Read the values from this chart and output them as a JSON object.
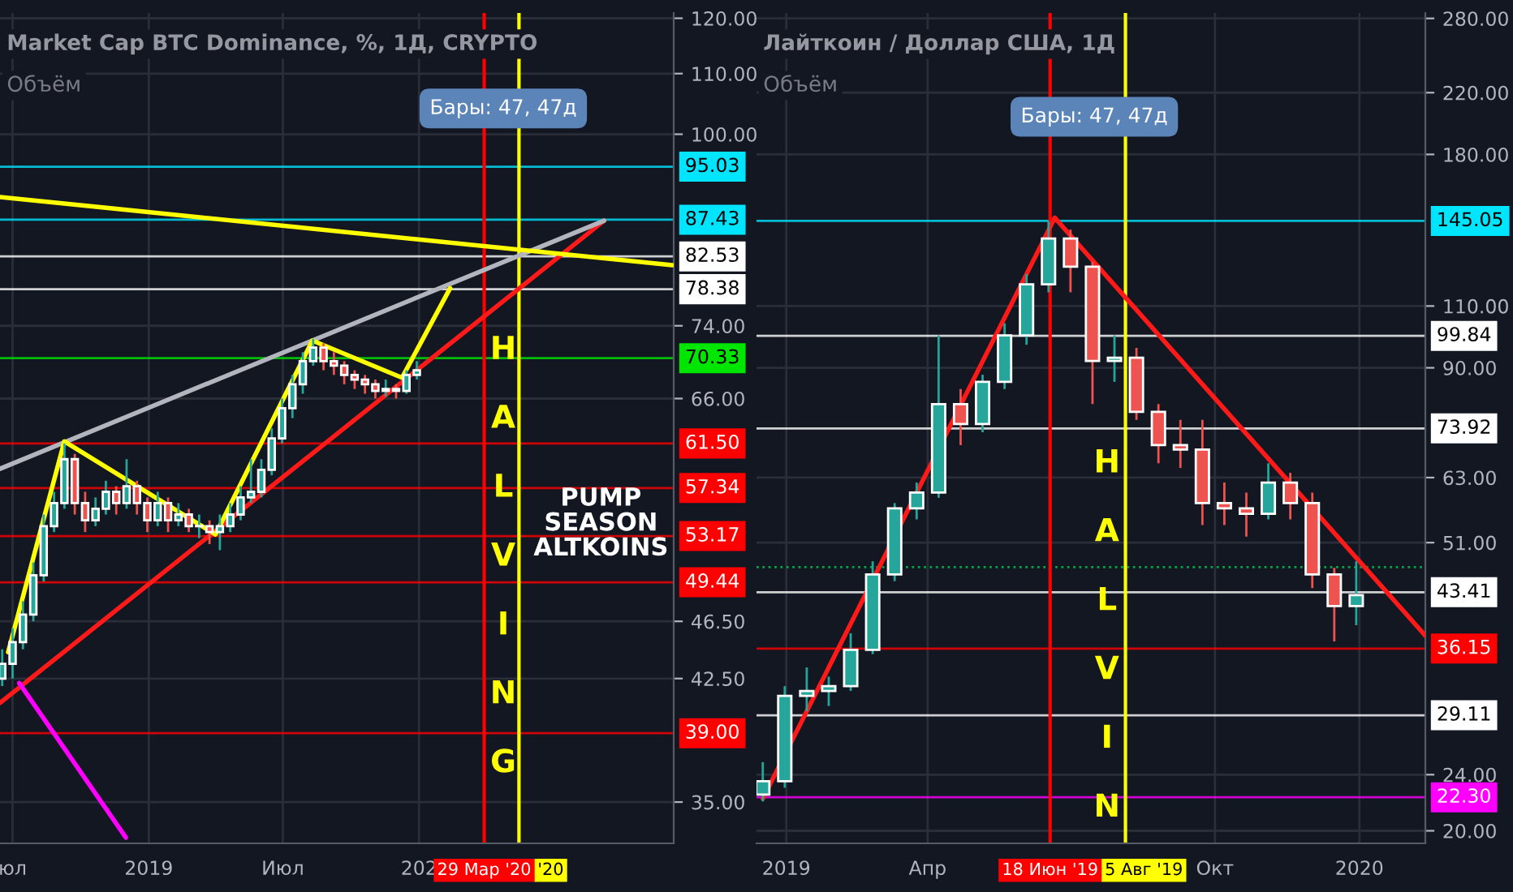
{
  "chart_data": [
    {
      "type": "candlestick",
      "title": "Market Cap BTC Dominance, %, 1Д, CRYPTO",
      "subtitle": "Объём",
      "x": [
        "2018-06-17",
        "2018-07-01",
        "2018-07-15",
        "2018-07-29",
        "2018-08-12",
        "2018-08-26",
        "2018-09-09",
        "2018-09-23",
        "2018-10-07",
        "2018-10-21",
        "2018-11-04",
        "2018-11-18",
        "2018-12-02",
        "2018-12-16",
        "2018-12-30",
        "2019-01-13",
        "2019-01-27",
        "2019-02-10",
        "2019-02-24",
        "2019-03-10",
        "2019-03-24",
        "2019-04-07",
        "2019-04-21",
        "2019-05-05",
        "2019-05-19",
        "2019-06-02",
        "2019-06-16",
        "2019-06-30",
        "2019-07-14",
        "2019-07-28",
        "2019-08-11",
        "2019-08-25",
        "2019-09-08",
        "2019-09-22",
        "2019-10-06",
        "2019-10-20",
        "2019-11-03",
        "2019-11-17",
        "2019-12-01",
        "2019-12-15",
        "2019-12-29"
      ],
      "ohlc": [
        [
          42.5,
          44.5,
          42,
          43.5
        ],
        [
          43.5,
          46,
          42.5,
          45
        ],
        [
          45,
          48,
          44.5,
          47
        ],
        [
          47,
          51,
          46.5,
          50
        ],
        [
          50,
          55,
          49.5,
          54
        ],
        [
          54,
          57,
          53.5,
          56
        ],
        [
          56,
          61.5,
          55.5,
          60
        ],
        [
          60,
          60.5,
          55,
          56
        ],
        [
          56,
          57,
          53.5,
          54.5
        ],
        [
          54.5,
          56.5,
          54,
          55.5
        ],
        [
          55.5,
          58,
          55,
          57
        ],
        [
          57,
          57.5,
          55,
          56
        ],
        [
          56,
          60,
          55.5,
          57.5
        ],
        [
          57.5,
          58,
          55,
          56
        ],
        [
          56,
          56.5,
          53.5,
          54.5
        ],
        [
          54.5,
          57,
          54,
          56
        ],
        [
          56,
          56.5,
          53.5,
          54.5
        ],
        [
          54.5,
          56,
          54,
          55
        ],
        [
          55,
          55.5,
          53.5,
          54
        ],
        [
          54,
          55,
          53,
          54
        ],
        [
          54,
          54.5,
          52.5,
          53.5
        ],
        [
          53.5,
          55,
          52,
          54
        ],
        [
          54,
          56,
          53.5,
          55
        ],
        [
          55,
          57.5,
          54.5,
          56.5
        ],
        [
          56.5,
          60,
          56,
          57
        ],
        [
          57,
          60,
          56.5,
          59
        ],
        [
          59,
          63,
          58.5,
          62
        ],
        [
          62,
          66,
          61.5,
          65
        ],
        [
          65,
          68.5,
          64,
          67.5
        ],
        [
          67.5,
          71,
          66.5,
          70
        ],
        [
          70,
          72.5,
          69.5,
          71.5
        ],
        [
          71.5,
          72,
          69,
          70
        ],
        [
          70,
          71,
          68.5,
          69.5
        ],
        [
          69.5,
          70,
          67.5,
          68.5
        ],
        [
          68.5,
          69,
          67,
          68
        ],
        [
          68,
          68.5,
          66.5,
          67.5
        ],
        [
          67.5,
          68,
          66,
          66.8
        ],
        [
          66.8,
          68,
          66.2,
          67
        ],
        [
          67,
          67.5,
          66,
          66.8
        ],
        [
          66.8,
          69,
          66.5,
          68.5
        ],
        [
          68.5,
          70,
          68,
          69
        ]
      ],
      "series": [
        {
          "type": "line",
          "x": [
            "2018-06-14",
            "2020-09-07"
          ],
          "values": [
            40.9,
            87.3
          ],
          "color": "#ff1a1a"
        },
        {
          "type": "line",
          "x": [
            "2018-06-14",
            "2020-09-07"
          ],
          "values": [
            59.1,
            87.3
          ],
          "color": "#b2b5be"
        },
        {
          "type": "line",
          "x": [
            "2018-06-14",
            "2020-12-08"
          ],
          "values": [
            90.6,
            81.4
          ],
          "color": "#ffff00"
        },
        {
          "type": "line",
          "x": [
            "2018-06-25",
            "2018-09-09",
            "2019-04-01",
            "2019-08-10",
            "2019-12-09",
            "2020-02-12"
          ],
          "values": [
            44.3,
            61.7,
            53.3,
            72.3,
            68.2,
            78.5
          ],
          "color": "#ffff00"
        },
        {
          "type": "line",
          "x": [
            "2018-07-10",
            "2018-12-01"
          ],
          "values": [
            42.2,
            33.1
          ],
          "color": "#ff00ff"
        }
      ],
      "xlim": [
        "2018-06-14",
        "2020-12-10"
      ],
      "ylim": [
        32.8,
        121
      ],
      "log": true,
      "grid": true,
      "xticks": [
        {
          "value": "2018-07-01",
          "label": "юл"
        },
        {
          "value": "2019-01-01",
          "label": "2019"
        },
        {
          "value": "2019-07-01",
          "label": "Июл"
        },
        {
          "value": "2020-01-01",
          "label": "202"
        }
      ],
      "yticks": [
        {
          "value": 35,
          "label": "35.00"
        },
        {
          "value": 42.5,
          "label": "42.50"
        },
        {
          "value": 46.5,
          "label": "46.50"
        },
        {
          "value": 66,
          "label": "66.00"
        },
        {
          "value": 74,
          "label": "74.00"
        },
        {
          "value": 100,
          "label": "100.00"
        },
        {
          "value": 110,
          "label": "110.00"
        },
        {
          "value": 120,
          "label": "120.00"
        }
      ],
      "ref_lines": [
        {
          "axis": "y",
          "value": 95.03,
          "label": "95.03",
          "color": "#00e5ff"
        },
        {
          "axis": "y",
          "value": 87.43,
          "label": "87.43",
          "color": "#00e5ff"
        },
        {
          "axis": "y",
          "value": 82.53,
          "label": "82.53",
          "color": "#ffffff"
        },
        {
          "axis": "y",
          "value": 78.38,
          "label": "78.38",
          "color": "#ffffff"
        },
        {
          "axis": "y",
          "value": 70.33,
          "label": "70.33",
          "color": "#00e600"
        },
        {
          "axis": "y",
          "value": 61.5,
          "label": "61.50",
          "color": "#ff0000"
        },
        {
          "axis": "y",
          "value": 57.34,
          "label": "57.34",
          "color": "#ff0000"
        },
        {
          "axis": "y",
          "value": 53.17,
          "label": "53.17",
          "color": "#ff0000"
        },
        {
          "axis": "y",
          "value": 49.44,
          "label": "49.44",
          "color": "#ff0000"
        },
        {
          "axis": "y",
          "value": 39.0,
          "label": "39.00",
          "color": "#ff0000"
        },
        {
          "axis": "x",
          "value": "2020-05-15",
          "label": "'20",
          "color": "#ffff00"
        },
        {
          "axis": "x",
          "value": "2020-03-29",
          "label": "29 Мар '20",
          "color": "#ff0000"
        }
      ],
      "annotations": [
        "Бары: 47, 47д",
        "H\nA\nL\nV\nI\nN\nG",
        "PUMP\nSEASON\nALTKOINS"
      ]
    },
    {
      "type": "candlestick",
      "title": "Лайткоин / Доллар США, 1Д",
      "subtitle": "Объём",
      "x": [
        "2018-12-17",
        "2018-12-31",
        "2019-01-14",
        "2019-01-28",
        "2019-02-11",
        "2019-02-25",
        "2019-03-11",
        "2019-03-25",
        "2019-04-08",
        "2019-04-22",
        "2019-05-06",
        "2019-05-20",
        "2019-06-03",
        "2019-06-17",
        "2019-07-01",
        "2019-07-15",
        "2019-07-29",
        "2019-08-12",
        "2019-08-26",
        "2019-09-09",
        "2019-09-23",
        "2019-10-07",
        "2019-10-21",
        "2019-11-04",
        "2019-11-18",
        "2019-12-02",
        "2019-12-16",
        "2019-12-30"
      ],
      "ohlc": [
        [
          22.5,
          25,
          22,
          23.5
        ],
        [
          23.5,
          32,
          23,
          31
        ],
        [
          31,
          34,
          29.5,
          31.5
        ],
        [
          31.5,
          33,
          30,
          32
        ],
        [
          32,
          38,
          31.5,
          36
        ],
        [
          36,
          48,
          35.5,
          46
        ],
        [
          46,
          58,
          45,
          57
        ],
        [
          57,
          62,
          55,
          60
        ],
        [
          60,
          100,
          59,
          80
        ],
        [
          80,
          84,
          70,
          75
        ],
        [
          75,
          88,
          73,
          86
        ],
        [
          86,
          104,
          84,
          100
        ],
        [
          100,
          122,
          97,
          118
        ],
        [
          118,
          145,
          115,
          137
        ],
        [
          137,
          141,
          115,
          125
        ],
        [
          125,
          127,
          80,
          92
        ],
        [
          92,
          100,
          86,
          93
        ],
        [
          93,
          96,
          76,
          78
        ],
        [
          78,
          80,
          66,
          70
        ],
        [
          70,
          76,
          65,
          69
        ],
        [
          69,
          76,
          54,
          58
        ],
        [
          58,
          62,
          54,
          57
        ],
        [
          57,
          60,
          52,
          56
        ],
        [
          56,
          66,
          55,
          62
        ],
        [
          62,
          64,
          55,
          58
        ],
        [
          58,
          60,
          44,
          46
        ],
        [
          46,
          47,
          37,
          41.5
        ],
        [
          41.5,
          48,
          39,
          43
        ]
      ],
      "series": [
        {
          "type": "line",
          "x": [
            "2018-12-17",
            "2019-06-21"
          ],
          "values": [
            22.2,
            146.5
          ],
          "color": "#ff1a1a"
        },
        {
          "type": "line",
          "x": [
            "2019-06-21",
            "2020-02-12"
          ],
          "values": [
            146.5,
            37.7
          ],
          "color": "#ff1a1a"
        }
      ],
      "xlim": [
        "2018-12-13",
        "2020-02-12"
      ],
      "ylim": [
        19.2,
        285
      ],
      "log": true,
      "grid": true,
      "xticks": [
        {
          "value": "2019-01-01",
          "label": "2019"
        },
        {
          "value": "2019-04-01",
          "label": "Апр"
        },
        {
          "value": "2019-10-01",
          "label": "Окт"
        },
        {
          "value": "2020-01-01",
          "label": "2020"
        }
      ],
      "yticks": [
        {
          "value": 20,
          "label": "20.00"
        },
        {
          "value": 24,
          "label": "24.00"
        },
        {
          "value": 51,
          "label": "51.00"
        },
        {
          "value": 63,
          "label": "63.00"
        },
        {
          "value": 90,
          "label": "90.00"
        },
        {
          "value": 110,
          "label": "110.00"
        },
        {
          "value": 180,
          "label": "180.00"
        },
        {
          "value": 220,
          "label": "220.00"
        },
        {
          "value": 280,
          "label": "280.00"
        }
      ],
      "ref_lines": [
        {
          "axis": "y",
          "value": 145.05,
          "label": "145.05",
          "color": "#00e5ff"
        },
        {
          "axis": "y",
          "value": 99.84,
          "label": "99.84",
          "color": "#ffffff"
        },
        {
          "axis": "y",
          "value": 73.92,
          "label": "73.92",
          "color": "#ffffff"
        },
        {
          "axis": "y",
          "value": 47.1,
          "color": "#00c853",
          "line_style": "dotted"
        },
        {
          "axis": "y",
          "value": 43.41,
          "label": "43.41",
          "color": "#ffffff"
        },
        {
          "axis": "y",
          "value": 36.15,
          "label": "36.15",
          "color": "#ff0000"
        },
        {
          "axis": "y",
          "value": 29.11,
          "label": "29.11",
          "color": "#ffffff"
        },
        {
          "axis": "y",
          "value": 22.3,
          "label": "22.30",
          "color": "#ff00ff"
        },
        {
          "axis": "x",
          "value": "2019-08-05",
          "label": "5 Авг '19",
          "color": "#ffff00"
        },
        {
          "axis": "x",
          "value": "2019-06-18",
          "label": "18 Июн '19",
          "color": "#ff0000"
        }
      ],
      "annotations": [
        "Бары: 47, 47д",
        "H\nA\nL\nV\nI\nN"
      ]
    }
  ]
}
